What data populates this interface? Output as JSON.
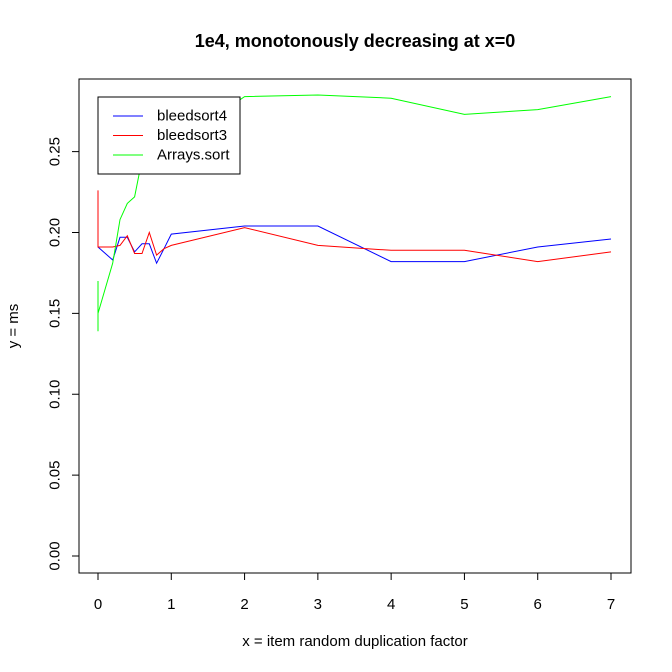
{
  "chart_data": {
    "type": "line",
    "title": "1e4, monotonously decreasing at x=0",
    "xlabel": "x = item random duplication factor",
    "ylabel": "y = ms",
    "xlim": [
      0,
      7
    ],
    "ylim": [
      0,
      0.285
    ],
    "xticks": [
      0,
      1,
      2,
      3,
      4,
      5,
      6,
      7
    ],
    "xtick_labels": [
      "0",
      "1",
      "2",
      "3",
      "4",
      "5",
      "6",
      "7"
    ],
    "yticks": [
      0,
      0.05,
      0.1,
      0.15,
      0.2,
      0.25
    ],
    "ytick_labels": [
      "0.00",
      "0.05",
      "0.10",
      "0.15",
      "0.20",
      "0.25"
    ],
    "grid": false,
    "legend_position": "top-left",
    "series": [
      {
        "name": "bleedsort4",
        "color": "#0000ff",
        "x": [
          0,
          0,
          0,
          0.2,
          0.3,
          0.4,
          0.5,
          0.6,
          0.7,
          0.8,
          0.9,
          1,
          2,
          3,
          4,
          5,
          6,
          7
        ],
        "y": [
          0.199,
          0.193,
          0.191,
          0.183,
          0.197,
          0.197,
          0.188,
          0.193,
          0.193,
          0.181,
          0.19,
          0.199,
          0.204,
          0.204,
          0.182,
          0.182,
          0.191,
          0.196
        ]
      },
      {
        "name": "bleedsort3",
        "color": "#ff0000",
        "x": [
          0,
          0,
          0,
          0.2,
          0.3,
          0.4,
          0.5,
          0.6,
          0.7,
          0.8,
          0.9,
          1,
          2,
          3,
          4,
          5,
          6,
          7
        ],
        "y": [
          0.226,
          0.197,
          0.191,
          0.191,
          0.192,
          0.198,
          0.187,
          0.187,
          0.2,
          0.186,
          0.19,
          0.192,
          0.203,
          0.192,
          0.189,
          0.189,
          0.182,
          0.188
        ]
      },
      {
        "name": "Arrays.sort",
        "color": "#00ff00",
        "x": [
          0,
          0,
          0,
          0.2,
          0.3,
          0.4,
          0.5,
          0.6,
          0.7,
          0.8,
          0.9,
          1,
          2,
          3,
          4,
          5,
          6,
          7
        ],
        "y": [
          0.17,
          0.139,
          0.15,
          0.181,
          0.208,
          0.218,
          0.222,
          0.245,
          0.246,
          0.252,
          0.257,
          0.253,
          0.284,
          0.285,
          0.283,
          0.273,
          0.276,
          0.284
        ]
      }
    ]
  }
}
